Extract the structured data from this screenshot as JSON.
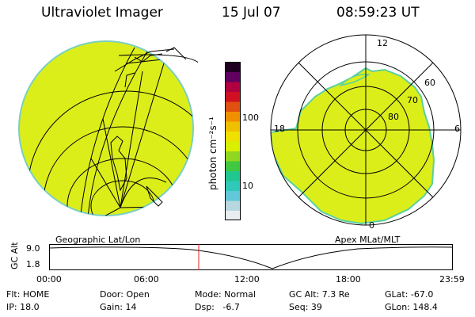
{
  "header": {
    "title": "Ultraviolet Imager",
    "date": "15 Jul 07",
    "time": "08:59:23 UT"
  },
  "colorbar": {
    "unit_label": "photon cm⁻²s⁻¹",
    "tick_labels": [
      "100",
      "10"
    ],
    "colors": [
      "#e8eef0",
      "#b8d8e0",
      "#60c8d8",
      "#30c8b8",
      "#20c890",
      "#40c840",
      "#90d820",
      "#d8f000",
      "#f0e000",
      "#f0c000",
      "#f09000",
      "#e05010",
      "#d01020",
      "#b00040",
      "#600060",
      "#200020"
    ]
  },
  "left_panel": {
    "caption": "Geographic Lat/Lon",
    "fill_color": "#dcee1a"
  },
  "right_panel": {
    "caption": "Apex MLat/MLT",
    "fill_color": "#dcee1a",
    "lat_labels": [
      "60",
      "70",
      "80"
    ],
    "mlt_labels": [
      "12",
      "18",
      "6",
      "0"
    ]
  },
  "alt_chart": {
    "ylabel": "GC Alt",
    "y_ticks": [
      "9.0",
      "1.8"
    ],
    "x_ticks": [
      "00:00",
      "06:00",
      "12:00",
      "18:00",
      "23:59"
    ],
    "marker_color": "#e02020"
  },
  "info": {
    "flt": "Flt: HOME",
    "ip": "IP: 18.0",
    "door": "Door: Open",
    "gain": "Gain: 14",
    "mode": "Mode: Normal",
    "dsp": "Dsp:   -6.7",
    "gcalt": "GC Alt: 7.3 Re",
    "seq": "Seq: 39",
    "glat": "GLat: -67.0",
    "glon": "GLon: 148.4"
  }
}
